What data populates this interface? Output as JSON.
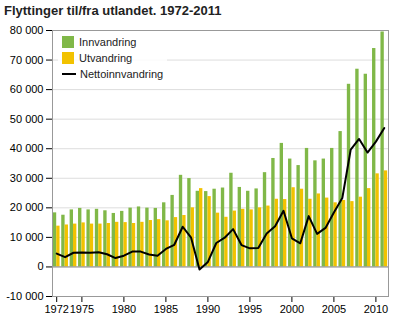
{
  "chart_data": {
    "type": "bar",
    "title": "Flyttinger til/fra utlandet. 1972-2011",
    "x": [
      1972,
      1973,
      1974,
      1975,
      1976,
      1977,
      1978,
      1979,
      1980,
      1981,
      1982,
      1983,
      1984,
      1985,
      1986,
      1987,
      1988,
      1989,
      1990,
      1991,
      1992,
      1993,
      1994,
      1995,
      1996,
      1997,
      1998,
      1999,
      2000,
      2001,
      2002,
      2003,
      2004,
      2005,
      2006,
      2007,
      2008,
      2009,
      2010,
      2011
    ],
    "series": [
      {
        "name": "Innvandring",
        "type": "bar",
        "color": "#80b848",
        "values": [
          18300,
          17500,
          19300,
          19800,
          19300,
          19500,
          19000,
          18100,
          18800,
          19900,
          20300,
          19900,
          19800,
          21700,
          24200,
          31000,
          29900,
          25600,
          25500,
          26300,
          26700,
          31700,
          26900,
          25600,
          26400,
          31900,
          36700,
          41800,
          36500,
          34300,
          40100,
          35900,
          36500,
          40100,
          45800,
          61800,
          66900,
          65200,
          73900,
          79500
        ]
      },
      {
        "name": "Utvandring",
        "type": "bar",
        "color": "#f2c200",
        "values": [
          13800,
          14200,
          14500,
          14900,
          14500,
          14500,
          14700,
          15100,
          15000,
          14700,
          15100,
          15700,
          16000,
          15600,
          16700,
          17400,
          20000,
          26500,
          23800,
          18200,
          16800,
          18900,
          19500,
          19300,
          20000,
          20600,
          22900,
          22800,
          26800,
          26300,
          22900,
          24700,
          23300,
          21700,
          22500,
          22100,
          23600,
          26500,
          31500,
          32500
        ]
      },
      {
        "name": "Nettoinnvandring",
        "type": "line",
        "color": "#000000",
        "values": [
          4500,
          3300,
          4800,
          4900,
          4800,
          5000,
          4300,
          3000,
          3800,
          5200,
          5200,
          4200,
          3800,
          6100,
          7500,
          13600,
          9900,
          -900,
          1700,
          8100,
          9900,
          12800,
          7400,
          6300,
          6400,
          11300,
          13800,
          19000,
          9700,
          8000,
          17200,
          11200,
          13200,
          18400,
          23300,
          39700,
          43300,
          38700,
          42400,
          47000
        ]
      }
    ],
    "xlim": [
      1971.5,
      2011.5
    ],
    "xticks": [
      1972,
      1975,
      1980,
      1985,
      1990,
      1995,
      2000,
      2005,
      2010
    ],
    "ylim": [
      -10000,
      80000
    ],
    "yticks": [
      {
        "value": -10000,
        "label": "-10 000"
      },
      0,
      {
        "value": 10000,
        "label": "10 000"
      },
      {
        "value": 20000,
        "label": "20 000"
      },
      {
        "value": 30000,
        "label": "30 000"
      },
      {
        "value": 40000,
        "label": "40 000"
      },
      {
        "value": 50000,
        "label": "50 000"
      },
      {
        "value": 60000,
        "label": "60 000"
      },
      {
        "value": 70000,
        "label": "70 000"
      },
      {
        "value": 80000,
        "label": "80 000"
      }
    ],
    "grid": true,
    "legend": "upper left"
  }
}
